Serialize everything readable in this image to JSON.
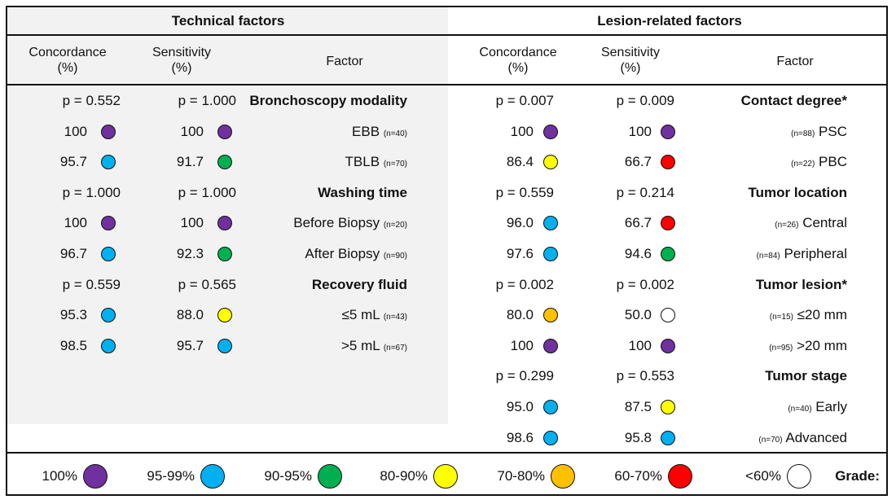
{
  "colors": {
    "100": "#7030a0",
    "95-99": "#00b0f0",
    "90-95": "#00b050",
    "80-90": "#ffff00",
    "70-80": "#ffc000",
    "60-70": "#ff0000",
    "lt60": "#ffffff",
    "tech_bg": "#f2f2f2"
  },
  "headers": {
    "technical": "Technical factors",
    "lesion": "Lesion-related factors"
  },
  "columns": {
    "concordance": [
      "Concordance",
      "(%)"
    ],
    "sensitivity": [
      "Sensitivity",
      "(%)"
    ],
    "factor": "Factor"
  },
  "technical": [
    {
      "type": "group",
      "label": "Bronchoscopy modality",
      "sens": "p = 1.000",
      "conc": "p = 0.552"
    },
    {
      "type": "item",
      "label": "EBB",
      "n": "(n=40)",
      "sens": "100",
      "sens_grade": "100",
      "conc": "100",
      "conc_grade": "100"
    },
    {
      "type": "item",
      "label": "TBLB",
      "n": "(n=70)",
      "sens": "91.7",
      "sens_grade": "90-95",
      "conc": "95.7",
      "conc_grade": "95-99"
    },
    {
      "type": "group",
      "label": "Washing time",
      "sens": "p = 1.000",
      "conc": "p = 1.000"
    },
    {
      "type": "item",
      "label": "Before Biopsy",
      "n": "(n=20)",
      "sens": "100",
      "sens_grade": "100",
      "conc": "100",
      "conc_grade": "100"
    },
    {
      "type": "item",
      "label": "After Biopsy",
      "n": "(n=90)",
      "sens": "92.3",
      "sens_grade": "90-95",
      "conc": "96.7",
      "conc_grade": "95-99"
    },
    {
      "type": "group",
      "label": "Recovery fluid",
      "sens": "p = 0.565",
      "conc": "p = 0.559"
    },
    {
      "type": "item",
      "label": "≤5 mL",
      "n": "(n=43)",
      "sens": "88.0",
      "sens_grade": "80-90",
      "conc": "95.3",
      "conc_grade": "95-99"
    },
    {
      "type": "item",
      "label": ">5 mL",
      "n": "(n=67)",
      "sens": "95.7",
      "sens_grade": "95-99",
      "conc": "98.5",
      "conc_grade": "95-99"
    }
  ],
  "lesion": [
    {
      "type": "group",
      "label": "Contact degree*",
      "sens": "p = 0.009",
      "conc": "p = 0.007"
    },
    {
      "type": "item",
      "label": "PSC",
      "n": "(n=88)",
      "sens": "100",
      "sens_grade": "100",
      "conc": "100",
      "conc_grade": "100"
    },
    {
      "type": "item",
      "label": "PBC",
      "n": "(n=22)",
      "sens": "66.7",
      "sens_grade": "60-70",
      "conc": "86.4",
      "conc_grade": "80-90"
    },
    {
      "type": "group",
      "label": "Tumor location",
      "sens": "p = 0.214",
      "conc": "p = 0.559"
    },
    {
      "type": "item",
      "label": "Central",
      "n": "(n=26)",
      "sens": "66.7",
      "sens_grade": "60-70",
      "conc": "96.0",
      "conc_grade": "95-99"
    },
    {
      "type": "item",
      "label": "Peripheral",
      "n": "(n=84)",
      "sens": "94.6",
      "sens_grade": "90-95",
      "conc": "97.6",
      "conc_grade": "95-99"
    },
    {
      "type": "group",
      "label": "Tumor lesion*",
      "sens": "p = 0.002",
      "conc": "p = 0.002"
    },
    {
      "type": "item",
      "label": "≤20 mm",
      "n": "(n=15)",
      "sens": "50.0",
      "sens_grade": "lt60",
      "conc": "80.0",
      "conc_grade": "70-80"
    },
    {
      "type": "item",
      "label": ">20 mm",
      "n": "(n=95)",
      "sens": "100",
      "sens_grade": "100",
      "conc": "100",
      "conc_grade": "100"
    },
    {
      "type": "group",
      "label": "Tumor stage",
      "sens": "p = 0.553",
      "conc": "p = 0.299"
    },
    {
      "type": "item",
      "label": "Early",
      "n": "(n=40)",
      "sens": "87.5",
      "sens_grade": "80-90",
      "conc": "95.0",
      "conc_grade": "95-99"
    },
    {
      "type": "item",
      "label": "Advanced",
      "n": "(n=70)",
      "sens": "95.8",
      "sens_grade": "95-99",
      "conc": "98.6",
      "conc_grade": "95-99"
    }
  ],
  "legend": {
    "title": "Grade:",
    "items": [
      {
        "grade": "lt60",
        "label": "<60%"
      },
      {
        "grade": "60-70",
        "label": "60-70%"
      },
      {
        "grade": "70-80",
        "label": "70-80%"
      },
      {
        "grade": "80-90",
        "label": "80-90%"
      },
      {
        "grade": "90-95",
        "label": "90-95%"
      },
      {
        "grade": "95-99",
        "label": "95-99%"
      },
      {
        "grade": "100",
        "label": "100%"
      }
    ]
  }
}
